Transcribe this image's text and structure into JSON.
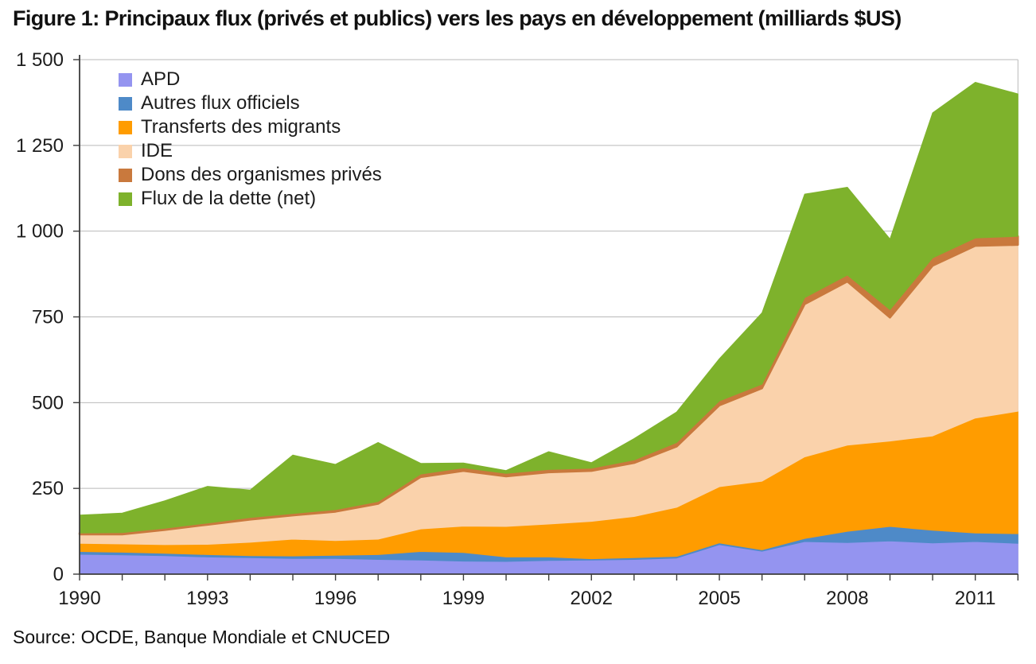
{
  "title": "Figure 1: Principaux flux (privés et publics) vers les pays en développement (milliards $US)",
  "source": "Source: OCDE, Banque Mondiale et CNUCED",
  "colors": {
    "background": "#ffffff",
    "axis": "#3d3d3d",
    "grid": "#b9b9b9",
    "text": "#1c1c1c"
  },
  "chart_data": {
    "type": "area",
    "stacked": true,
    "title": "Figure 1: Principaux flux (privés et publics) vers les pays en développement (milliards $US)",
    "xlabel": "",
    "ylabel": "",
    "ylim": [
      0,
      1500
    ],
    "grid": true,
    "legend_position": "top-left-inside",
    "x": [
      1990,
      1991,
      1992,
      1993,
      1994,
      1995,
      1996,
      1997,
      1998,
      1999,
      2000,
      2001,
      2002,
      2003,
      2004,
      2005,
      2006,
      2007,
      2008,
      2009,
      2010,
      2011,
      2012
    ],
    "x_tick_labels": [
      "1990",
      "1993",
      "1996",
      "1999",
      "2002",
      "2005",
      "2008",
      "2011"
    ],
    "x_tick_years": [
      1990,
      1993,
      1996,
      1999,
      2002,
      2005,
      2008,
      2011
    ],
    "y_ticks": [
      0,
      250,
      500,
      750,
      1000,
      1250,
      1500
    ],
    "y_tick_labels": [
      "0",
      "250",
      "500",
      "750",
      "1 000",
      "1 250",
      "1 500"
    ],
    "series": [
      {
        "name": "APD",
        "slug": "apd",
        "color": "#9494f0",
        "values": [
          58,
          56,
          54,
          50,
          48,
          46,
          46,
          43,
          41,
          38,
          37,
          40,
          41,
          43,
          47,
          86,
          67,
          95,
          92,
          97,
          91,
          95,
          90
        ]
      },
      {
        "name": "Autres flux officiels",
        "slug": "autres-flux-officiels",
        "color": "#4e8ac8",
        "values": [
          8,
          8,
          7,
          7,
          6,
          7,
          9,
          14,
          25,
          25,
          13,
          10,
          4,
          5,
          5,
          5,
          4,
          9,
          33,
          42,
          37,
          25,
          28
        ]
      },
      {
        "name": "Transferts des migrants",
        "slug": "transferts-des-migrants",
        "color": "#ff9c00",
        "values": [
          24,
          24,
          25,
          30,
          39,
          49,
          43,
          45,
          66,
          77,
          89,
          96,
          109,
          120,
          143,
          164,
          200,
          238,
          251,
          249,
          275,
          335,
          357
        ]
      },
      {
        "name": "IDE",
        "slug": "ide",
        "color": "#fad2ab",
        "values": [
          26,
          28,
          43,
          57,
          66,
          69,
          84,
          103,
          151,
          161,
          146,
          151,
          147,
          156,
          177,
          237,
          271,
          445,
          477,
          360,
          496,
          502,
          485
        ]
      },
      {
        "name": "Dons des organismes privés",
        "slug": "dons-des-organismes-prives",
        "color": "#c9793d",
        "values": [
          4,
          5,
          5,
          5,
          6,
          6,
          6,
          7,
          9,
          9,
          9,
          8,
          8,
          9,
          12,
          13,
          12,
          19,
          19,
          23,
          23,
          23,
          25
        ]
      },
      {
        "name": "Flux de la dette (net)",
        "slug": "flux-de-la-dette-net",
        "color": "#7eb22c",
        "values": [
          52,
          57,
          80,
          107,
          80,
          170,
          132,
          172,
          31,
          14,
          8,
          52,
          16,
          62,
          89,
          123,
          208,
          302,
          256,
          206,
          423,
          454,
          415
        ]
      }
    ]
  }
}
